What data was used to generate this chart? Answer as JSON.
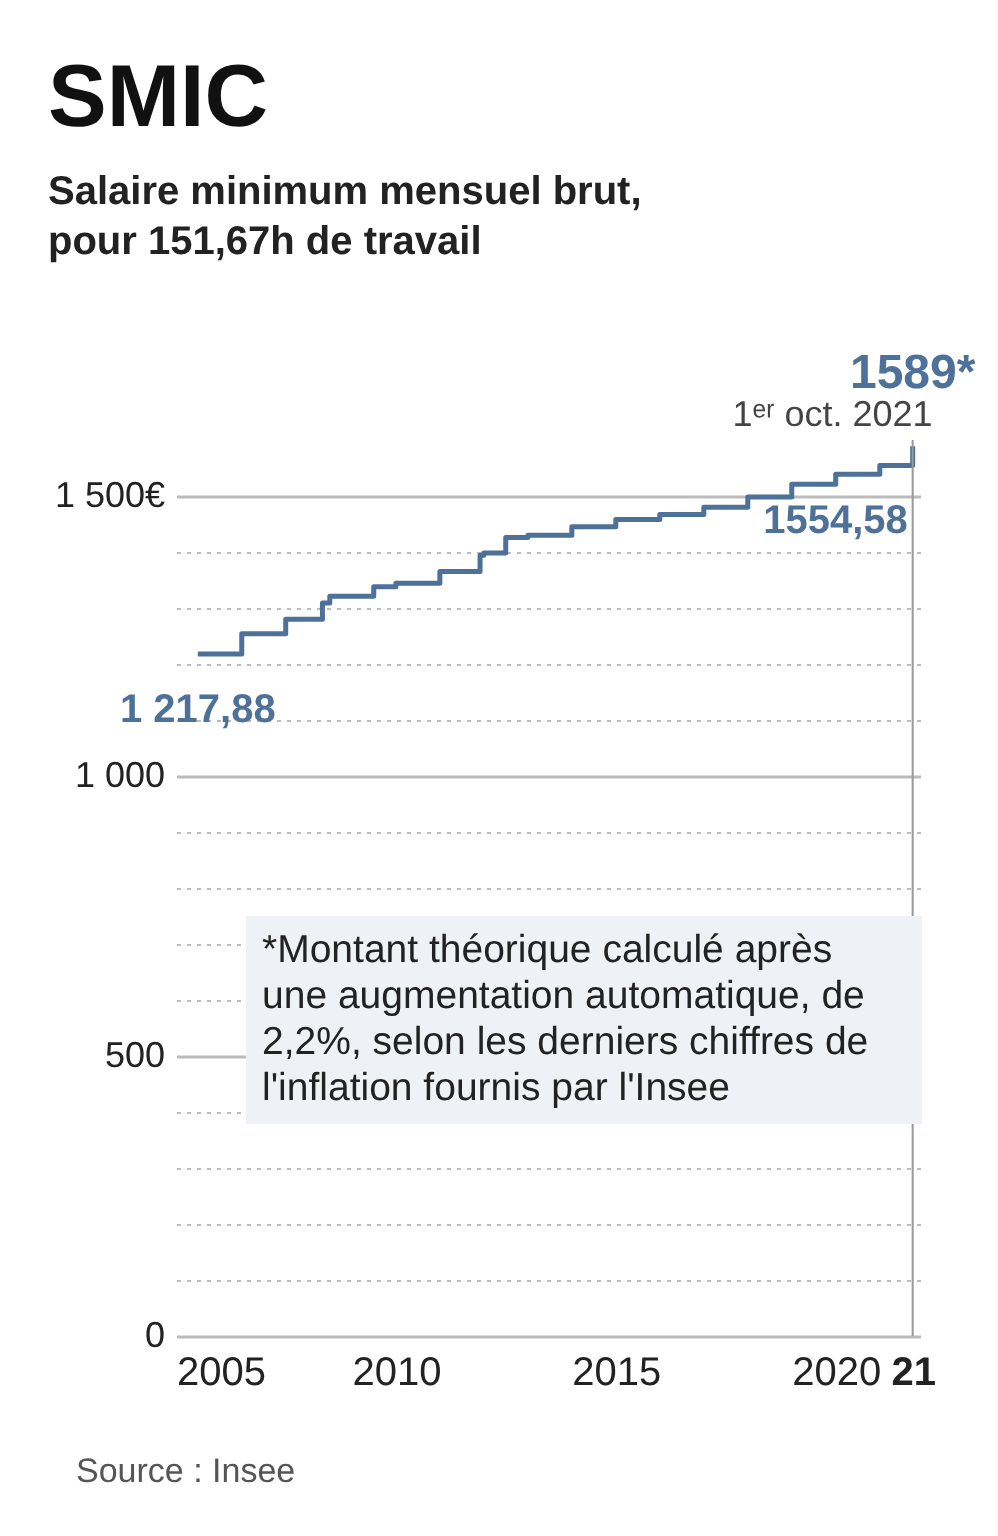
{
  "chart_data": {
    "type": "step",
    "title": "SMIC",
    "subtitle": "Salaire minimum mensuel brut, pour 151,67h de travail",
    "x": [
      "2005-07",
      "2006-07",
      "2007-07",
      "2008-05",
      "2008-07",
      "2009-07",
      "2010-01",
      "2011-01",
      "2011-12",
      "2012-01",
      "2012-07",
      "2013-01",
      "2014-01",
      "2015-01",
      "2016-01",
      "2017-01",
      "2018-01",
      "2019-01",
      "2020-01",
      "2021-01",
      "2021-10"
    ],
    "series": [
      {
        "color": "#4e7199",
        "values": [
          1217.88,
          1254,
          1280,
          1309,
          1321,
          1338,
          1344,
          1365,
          1394,
          1398,
          1426,
          1430,
          1445,
          1458,
          1467,
          1480,
          1498,
          1521,
          1539,
          1554.58,
          1589
        ],
        "value_labels": [
          "1 217,88",
          null,
          null,
          null,
          null,
          null,
          null,
          null,
          null,
          null,
          null,
          null,
          null,
          null,
          null,
          null,
          null,
          null,
          null,
          "1554,58",
          "1589*"
        ]
      }
    ],
    "xlim": [
      "2005-01",
      "2021-12"
    ],
    "xticks": [
      "2005",
      "2010",
      "2015",
      "2020",
      {
        "value": "2021-10",
        "label": "21"
      }
    ],
    "ylim": [
      0,
      1600
    ],
    "yticks": [
      {
        "value": 0,
        "label": "0"
      },
      {
        "value": 100,
        "label": null
      },
      {
        "value": 200,
        "label": null
      },
      {
        "value": 300,
        "label": null
      },
      {
        "value": 400,
        "label": null
      },
      {
        "value": 500,
        "label": "500"
      },
      {
        "value": 600,
        "label": null
      },
      {
        "value": 700,
        "label": null
      },
      {
        "value": 800,
        "label": null
      },
      {
        "value": 900,
        "label": null
      },
      {
        "value": 1000,
        "label": "1 000"
      },
      {
        "value": 1100,
        "label": null
      },
      {
        "value": 1200,
        "label": null
      },
      {
        "value": 1300,
        "label": null
      },
      {
        "value": 1400,
        "label": null
      },
      {
        "value": 1500,
        "label": "1 500€"
      }
    ],
    "grid": "y",
    "marker": "none",
    "line_style": "solid",
    "ref_lines": [
      {
        "axis": "x",
        "value": "2021-10",
        "label": "1ᵉʳ oct. 2021"
      }
    ],
    "annotations": [
      "*Montant théorique calculé après une augmentation automatique, de 2,2%, selon les derniers chiffres de l'inflation fournis par l'Insee",
      "Source : Insee"
    ]
  }
}
